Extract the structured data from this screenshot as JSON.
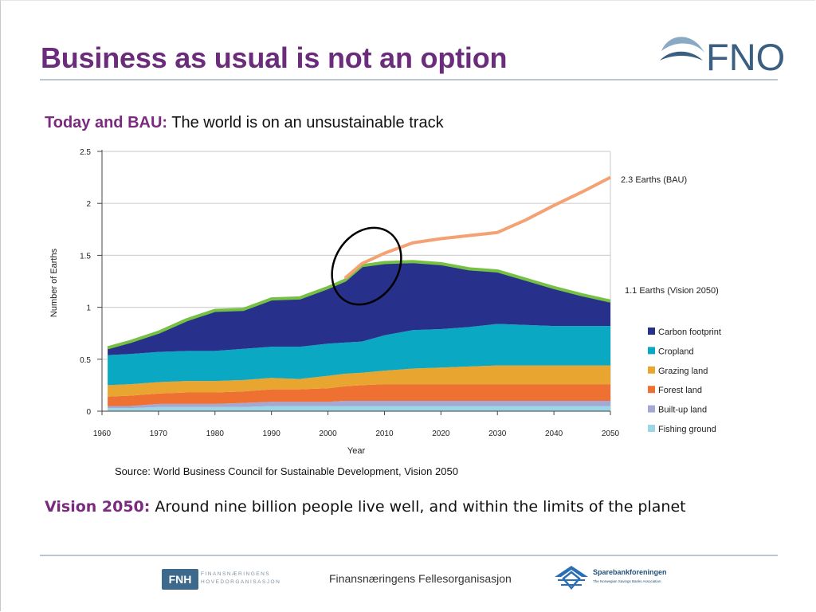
{
  "slide": {
    "title": "Business as usual is not an option",
    "subtitle_lead": "Today and BAU:",
    "subtitle_text": " The world is on an unsustainable track",
    "source": "Source: World Business Council for Sustainable Development, Vision 2050",
    "vision_lead": "Vision 2050:",
    "vision_text": " Around nine billion people live well, and within the limits of the planet"
  },
  "logo": {
    "text": "FNO"
  },
  "footer": {
    "fnh_badge": "FNH",
    "fnh_line1": "FINANSNÆRINGENS",
    "fnh_line2": "HOVEDORGANISASJON",
    "center_name": "Finansnæringens Fellesorganisasjon",
    "sparebank_name": "Sparebankforeningen",
    "sparebank_sub": "The Norwegian Savings Banks Association"
  },
  "colors": {
    "title": "#6b2c7c",
    "accent": "#7a2b7f",
    "carbon": "#27318b",
    "cropland": "#0aa8c2",
    "grazing": "#e8a530",
    "forest": "#ee7131",
    "builtup": "#a6a8d4",
    "fishing": "#9bd6e6",
    "bau": "#f4a273",
    "vision_edge": "#76c043"
  },
  "chart_data": {
    "type": "area",
    "ylabel": "Number of Earths",
    "xlabel": "Year",
    "ylim": [
      0,
      2.5
    ],
    "xlim": [
      1960,
      2050
    ],
    "y_ticks": [
      "0",
      "0.5",
      "1",
      "1.5",
      "2",
      "2.5"
    ],
    "x_ticks": [
      "1960",
      "1970",
      "1980",
      "1990",
      "2000",
      "2010",
      "2020",
      "2030",
      "2040",
      "2050"
    ],
    "grid": true,
    "legend_position": "right",
    "x": [
      1961,
      1965,
      1970,
      1975,
      1980,
      1985,
      1990,
      1995,
      2000,
      2003,
      2006,
      2010,
      2015,
      2020,
      2025,
      2030,
      2035,
      2040,
      2045,
      2050
    ],
    "series": [
      {
        "name": "Fishing ground",
        "key": "fishing",
        "values": [
          0.03,
          0.03,
          0.04,
          0.04,
          0.04,
          0.04,
          0.05,
          0.05,
          0.05,
          0.05,
          0.05,
          0.05,
          0.05,
          0.05,
          0.05,
          0.05,
          0.05,
          0.05,
          0.05,
          0.05
        ]
      },
      {
        "name": "Built-up land",
        "key": "builtup",
        "values": [
          0.02,
          0.02,
          0.03,
          0.03,
          0.03,
          0.04,
          0.04,
          0.04,
          0.04,
          0.05,
          0.05,
          0.05,
          0.05,
          0.05,
          0.05,
          0.05,
          0.05,
          0.05,
          0.05,
          0.05
        ]
      },
      {
        "name": "Forest land",
        "key": "forest",
        "values": [
          0.09,
          0.1,
          0.1,
          0.11,
          0.11,
          0.11,
          0.12,
          0.12,
          0.13,
          0.14,
          0.15,
          0.16,
          0.16,
          0.16,
          0.16,
          0.16,
          0.16,
          0.16,
          0.16,
          0.16
        ]
      },
      {
        "name": "Grazing land",
        "key": "grazing",
        "values": [
          0.11,
          0.11,
          0.11,
          0.11,
          0.11,
          0.11,
          0.11,
          0.1,
          0.12,
          0.12,
          0.12,
          0.13,
          0.15,
          0.16,
          0.17,
          0.18,
          0.18,
          0.18,
          0.18,
          0.18
        ]
      },
      {
        "name": "Cropland",
        "key": "cropland",
        "values": [
          0.29,
          0.29,
          0.29,
          0.29,
          0.29,
          0.3,
          0.3,
          0.31,
          0.31,
          0.3,
          0.3,
          0.34,
          0.37,
          0.37,
          0.38,
          0.4,
          0.39,
          0.38,
          0.38,
          0.38
        ]
      },
      {
        "name": "Carbon footprint",
        "key": "carbon",
        "values": [
          0.07,
          0.12,
          0.19,
          0.3,
          0.39,
          0.38,
          0.46,
          0.47,
          0.54,
          0.6,
          0.73,
          0.7,
          0.66,
          0.63,
          0.56,
          0.51,
          0.44,
          0.37,
          0.3,
          0.24
        ]
      }
    ],
    "bau_line": {
      "name": "2.3 Earths (BAU)",
      "x": [
        2003,
        2006,
        2010,
        2015,
        2020,
        2025,
        2030,
        2035,
        2040,
        2045,
        2050
      ],
      "values": [
        1.28,
        1.42,
        1.52,
        1.62,
        1.66,
        1.69,
        1.72,
        1.84,
        1.98,
        2.11,
        2.25
      ]
    },
    "vision_label": "1.1 Earths (Vision 2050)",
    "legend": [
      "Carbon footprint",
      "Cropland",
      "Grazing land",
      "Forest land",
      "Built-up land",
      "Fishing ground"
    ]
  }
}
